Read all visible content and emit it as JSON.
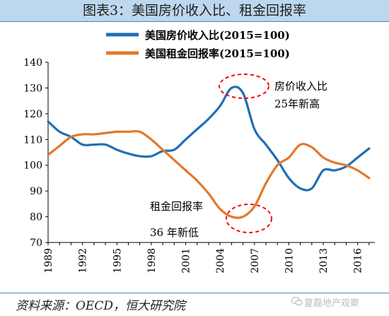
{
  "title": "图表3：美国房价收入比、租金回报率",
  "source": "资料来源：OECD，恒大研究院",
  "watermark": "夏磊地产观察",
  "annotations": {
    "price_income_line1": "房价收入比",
    "price_income_line2": "25年新高",
    "rent_line1": "租金回报率",
    "rent_line2": "36 年新低"
  },
  "colors": {
    "blue": "#1f6fb6",
    "orange": "#e3782b",
    "highlight": "#ff0000",
    "header_bg": "#bdd7ee"
  },
  "chart_data": {
    "type": "line",
    "x": [
      1989,
      1990,
      1991,
      1992,
      1993,
      1994,
      1995,
      1996,
      1997,
      1998,
      1999,
      2000,
      2001,
      2002,
      2003,
      2004,
      2005,
      2006,
      2007,
      2008,
      2009,
      2010,
      2011,
      2012,
      2013,
      2014,
      2015,
      2016,
      2017
    ],
    "series": [
      {
        "name": "美国房价收入比(2015=100)",
        "color": "#1f6fb6",
        "values": [
          117,
          113,
          111,
          108,
          108,
          108,
          106,
          104.5,
          103.5,
          103.5,
          105.5,
          106,
          110,
          114,
          118,
          123,
          130,
          128,
          114,
          108,
          102,
          95,
          91,
          91,
          98,
          98,
          99.5,
          103,
          106.5
        ]
      },
      {
        "name": "美国租金回报率(2015=100)",
        "color": "#e3782b",
        "values": [
          104,
          107.5,
          111,
          112,
          112,
          112.5,
          113,
          113,
          113,
          110,
          106,
          102,
          98,
          94,
          89,
          83,
          80,
          80,
          84,
          93,
          100,
          103,
          108,
          107,
          103,
          101,
          100,
          98,
          95
        ]
      }
    ],
    "xticks": [
      "1989",
      "1992",
      "1995",
      "1998",
      "2001",
      "2004",
      "2007",
      "2010",
      "2013",
      "2016"
    ],
    "yticks": [
      "70",
      "80",
      "90",
      "100",
      "110",
      "120",
      "130",
      "140"
    ],
    "ylim": [
      70,
      140
    ],
    "xlim": [
      1989,
      2017.5
    ],
    "legend": "top",
    "grid": false
  }
}
